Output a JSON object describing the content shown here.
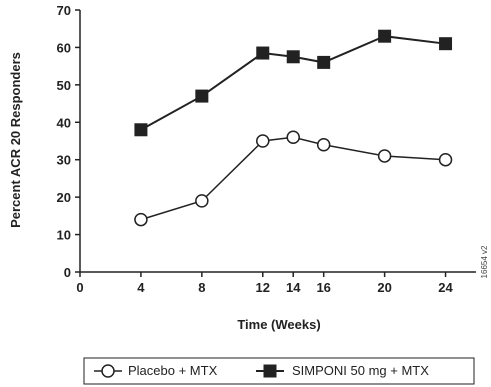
{
  "chart_data": {
    "type": "line",
    "title": "",
    "xlabel": "Time (Weeks)",
    "ylabel": "Percent ACR 20 Responders",
    "xlim": [
      0,
      26
    ],
    "ylim": [
      0,
      70
    ],
    "x_ticks": [
      0,
      4,
      8,
      12,
      14,
      16,
      20,
      24
    ],
    "y_ticks": [
      0,
      10,
      20,
      30,
      40,
      50,
      60,
      70
    ],
    "grid": false,
    "legend_position": "bottom",
    "side_note": "16654 v2",
    "series": [
      {
        "name": "Placebo + MTX",
        "marker": "open-circle",
        "color": "#222222",
        "x": [
          4,
          8,
          12,
          14,
          16,
          20,
          24
        ],
        "y": [
          14,
          19,
          35,
          36,
          34,
          31,
          30
        ]
      },
      {
        "name": "SIMPONI 50 mg + MTX",
        "marker": "filled-square",
        "color": "#222222",
        "x": [
          4,
          8,
          12,
          14,
          16,
          20,
          24
        ],
        "y": [
          38,
          47,
          58.5,
          57.5,
          56,
          63,
          61
        ]
      }
    ]
  }
}
